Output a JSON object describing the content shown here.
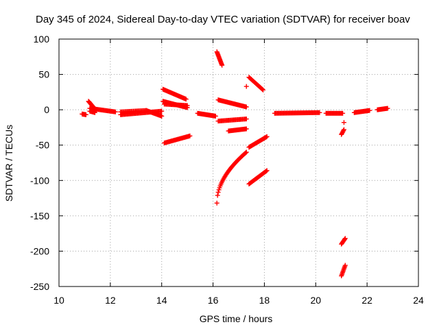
{
  "chart_data": {
    "type": "scatter",
    "title": "Day 345 of 2024, Sidereal Day-to-day VTEC variation (SDTVAR) for receiver boav",
    "xlabel": "GPS time / hours",
    "ylabel": "SDTVAR / TECUs",
    "xlim": [
      10,
      24
    ],
    "ylim": [
      -250,
      100
    ],
    "xticks": [
      10,
      12,
      14,
      16,
      18,
      20,
      22,
      24
    ],
    "yticks": [
      -250,
      -200,
      -150,
      -100,
      -50,
      0,
      50,
      100
    ],
    "grid": true,
    "legend": "none",
    "marker": "plus",
    "color": "#ff0000",
    "segments": [
      {
        "x0": 10.9,
        "y0": -6,
        "x1": 11.05,
        "y1": -7,
        "n": 10
      },
      {
        "x0": 11.15,
        "y0": 12,
        "x1": 11.45,
        "y1": -1,
        "n": 18
      },
      {
        "x0": 11.2,
        "y0": 2,
        "x1": 12.2,
        "y1": -3,
        "n": 30
      },
      {
        "x0": 11.2,
        "y0": -2,
        "x1": 11.4,
        "y1": -4,
        "n": 8
      },
      {
        "x0": 12.4,
        "y0": -7,
        "x1": 14.0,
        "y1": -2,
        "n": 45
      },
      {
        "x0": 12.4,
        "y0": -3,
        "x1": 13.4,
        "y1": -1,
        "n": 25
      },
      {
        "x0": 13.4,
        "y0": -1,
        "x1": 14.0,
        "y1": -9,
        "n": 20
      },
      {
        "x0": 14.05,
        "y0": 29,
        "x1": 14.95,
        "y1": 15,
        "n": 30
      },
      {
        "x0": 14.05,
        "y0": 12,
        "x1": 15.0,
        "y1": 3,
        "n": 30
      },
      {
        "x0": 14.1,
        "y0": 8,
        "x1": 15.0,
        "y1": 6,
        "n": 25
      },
      {
        "x0": 14.1,
        "y0": -47,
        "x1": 15.1,
        "y1": -37,
        "n": 30
      },
      {
        "x0": 15.4,
        "y0": -5,
        "x1": 16.1,
        "y1": -9,
        "n": 25
      },
      {
        "x0": 16.15,
        "y0": 82,
        "x1": 16.35,
        "y1": 63,
        "n": 15
      },
      {
        "x0": 16.2,
        "y0": 14,
        "x1": 17.3,
        "y1": 4,
        "n": 35
      },
      {
        "x0": 16.2,
        "y0": -16,
        "x1": 17.3,
        "y1": -13,
        "n": 30
      },
      {
        "x0": 16.6,
        "y0": -30,
        "x1": 17.3,
        "y1": -27,
        "n": 22
      },
      {
        "x0": 17.3,
        "y0": 33,
        "x1": 17.3,
        "y1": 33,
        "n": 1
      },
      {
        "x0": 17.4,
        "y0": 46,
        "x1": 17.95,
        "y1": 28,
        "n": 20
      },
      {
        "x0": 17.4,
        "y0": -53,
        "x1": 18.1,
        "y1": -38,
        "n": 25
      },
      {
        "x0": 17.4,
        "y0": -105,
        "x1": 18.1,
        "y1": -86,
        "n": 25
      },
      {
        "x0": 18.4,
        "y0": -5,
        "x1": 20.15,
        "y1": -4,
        "n": 50
      },
      {
        "x0": 20.4,
        "y0": -5,
        "x1": 21.05,
        "y1": -5,
        "n": 20
      },
      {
        "x0": 21.0,
        "y0": -35,
        "x1": 21.1,
        "y1": -28,
        "n": 6
      },
      {
        "x0": 21.1,
        "y0": -18,
        "x1": 21.1,
        "y1": -18,
        "n": 1
      },
      {
        "x0": 21.0,
        "y0": -190,
        "x1": 21.15,
        "y1": -182,
        "n": 8
      },
      {
        "x0": 21.0,
        "y0": -235,
        "x1": 21.15,
        "y1": -220,
        "n": 10
      },
      {
        "x0": 21.5,
        "y0": -4,
        "x1": 22.1,
        "y1": -1,
        "n": 20
      },
      {
        "x0": 22.4,
        "y0": 0,
        "x1": 22.8,
        "y1": 2,
        "n": 15
      }
    ],
    "curves": [
      {
        "x0": 16.15,
        "x1": 17.3,
        "y0": -132,
        "y1": -60,
        "shape": "sqrt",
        "n": 45
      }
    ]
  }
}
